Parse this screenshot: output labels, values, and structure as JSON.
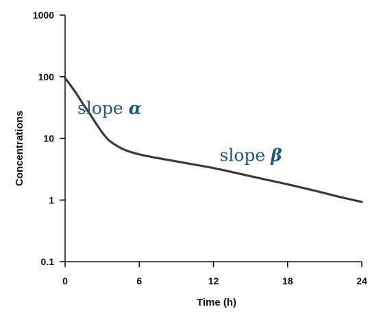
{
  "chart_data": {
    "type": "line",
    "title": "",
    "xlabel": "Time (h)",
    "ylabel": "Concentrations",
    "xlim": [
      0,
      24
    ],
    "ylim": [
      0.1,
      1000
    ],
    "yscale": "log",
    "grid": false,
    "x_ticks": [
      "0",
      "6",
      "12",
      "18",
      "24"
    ],
    "y_ticks": [
      "0.1",
      "1",
      "10",
      "100",
      "1000"
    ],
    "series": [
      {
        "color": "#3a3a3a",
        "x": [
          0,
          0.5,
          1,
          1.5,
          2,
          2.5,
          3,
          3.5,
          4,
          4.5,
          5,
          6,
          7,
          8,
          10,
          12,
          14,
          16,
          18,
          20,
          22,
          24
        ],
        "y": [
          95,
          70,
          50,
          35,
          25,
          17.5,
          12.5,
          9.5,
          8,
          7,
          6.3,
          5.5,
          5,
          4.6,
          3.9,
          3.3,
          2.7,
          2.2,
          1.8,
          1.45,
          1.15,
          0.93
        ]
      }
    ],
    "annotations": [
      {
        "text": "slope ",
        "symbol": "α",
        "x": 1,
        "y": 25
      },
      {
        "text": "slope ",
        "symbol": "β",
        "x": 12.5,
        "y": 4.3
      }
    ]
  },
  "colors": {
    "axis": "#111111",
    "curve": "#3a3a3a",
    "annotation": "#1f5a7a"
  }
}
